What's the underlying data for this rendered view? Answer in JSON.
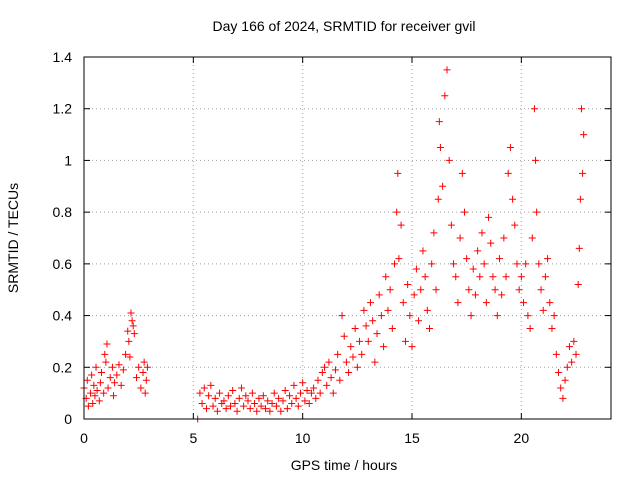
{
  "chart_data": {
    "type": "scatter",
    "title": "Day 166 of 2024, SRMTID for receiver gvil",
    "xlabel": "GPS time / hours",
    "ylabel": "SRMTID / TECUs",
    "xlim": [
      0,
      24.1
    ],
    "ylim": [
      0,
      1.4
    ],
    "xticks": [
      0,
      5,
      10,
      15,
      20
    ],
    "xtick_labels": [
      "0",
      "5",
      "10",
      "15",
      "20"
    ],
    "yticks": [
      0,
      0.2,
      0.4,
      0.6,
      0.8,
      1.0,
      1.2,
      1.4
    ],
    "ytick_labels": [
      "0",
      "0.2",
      "0.4",
      "0.6",
      "0.8",
      "1",
      "1.2",
      "1.4"
    ],
    "grid": true,
    "marker": "+",
    "color": "#ff0000",
    "series": [
      {
        "name": "SRMTID",
        "points": [
          [
            0.0,
            0.12
          ],
          [
            0.1,
            0.08
          ],
          [
            0.15,
            0.15
          ],
          [
            0.2,
            0.05
          ],
          [
            0.3,
            0.1
          ],
          [
            0.35,
            0.17
          ],
          [
            0.4,
            0.06
          ],
          [
            0.45,
            0.13
          ],
          [
            0.5,
            0.09
          ],
          [
            0.55,
            0.2
          ],
          [
            0.6,
            0.11
          ],
          [
            0.7,
            0.07
          ],
          [
            0.75,
            0.14
          ],
          [
            0.8,
            0.18
          ],
          [
            0.9,
            0.1
          ],
          [
            0.95,
            0.25
          ],
          [
            1.0,
            0.22
          ],
          [
            1.05,
            0.29
          ],
          [
            1.1,
            0.12
          ],
          [
            1.2,
            0.16
          ],
          [
            1.3,
            0.2
          ],
          [
            1.35,
            0.09
          ],
          [
            1.4,
            0.14
          ],
          [
            1.5,
            0.17
          ],
          [
            1.6,
            0.21
          ],
          [
            1.7,
            0.13
          ],
          [
            1.8,
            0.19
          ],
          [
            1.9,
            0.25
          ],
          [
            2.0,
            0.34
          ],
          [
            2.05,
            0.3
          ],
          [
            2.1,
            0.24
          ],
          [
            2.15,
            0.41
          ],
          [
            2.2,
            0.38
          ],
          [
            2.25,
            0.36
          ],
          [
            2.3,
            0.33
          ],
          [
            2.4,
            0.16
          ],
          [
            2.5,
            0.2
          ],
          [
            2.6,
            0.12
          ],
          [
            2.7,
            0.18
          ],
          [
            2.75,
            0.22
          ],
          [
            2.8,
            0.1
          ],
          [
            2.85,
            0.15
          ],
          [
            2.9,
            0.2
          ],
          [
            5.2,
            0.0
          ],
          [
            5.3,
            0.1
          ],
          [
            5.4,
            0.06
          ],
          [
            5.5,
            0.12
          ],
          [
            5.6,
            0.04
          ],
          [
            5.7,
            0.09
          ],
          [
            5.8,
            0.13
          ],
          [
            5.9,
            0.05
          ],
          [
            6.0,
            0.08
          ],
          [
            6.1,
            0.03
          ],
          [
            6.2,
            0.1
          ],
          [
            6.3,
            0.06
          ],
          [
            6.4,
            0.07
          ],
          [
            6.5,
            0.04
          ],
          [
            6.6,
            0.09
          ],
          [
            6.7,
            0.05
          ],
          [
            6.8,
            0.11
          ],
          [
            6.9,
            0.06
          ],
          [
            7.0,
            0.03
          ],
          [
            7.1,
            0.08
          ],
          [
            7.2,
            0.12
          ],
          [
            7.3,
            0.05
          ],
          [
            7.4,
            0.09
          ],
          [
            7.5,
            0.07
          ],
          [
            7.6,
            0.04
          ],
          [
            7.7,
            0.1
          ],
          [
            7.8,
            0.06
          ],
          [
            7.9,
            0.03
          ],
          [
            8.0,
            0.08
          ],
          [
            8.1,
            0.05
          ],
          [
            8.2,
            0.09
          ],
          [
            8.3,
            0.04
          ],
          [
            8.4,
            0.07
          ],
          [
            8.5,
            0.03
          ],
          [
            8.6,
            0.06
          ],
          [
            8.7,
            0.1
          ],
          [
            8.8,
            0.05
          ],
          [
            8.9,
            0.08
          ],
          [
            9.0,
            0.03
          ],
          [
            9.1,
            0.07
          ],
          [
            9.2,
            0.11
          ],
          [
            9.3,
            0.04
          ],
          [
            9.4,
            0.09
          ],
          [
            9.5,
            0.06
          ],
          [
            9.6,
            0.13
          ],
          [
            9.7,
            0.08
          ],
          [
            9.8,
            0.05
          ],
          [
            9.9,
            0.1
          ],
          [
            10.0,
            0.14
          ],
          [
            10.1,
            0.07
          ],
          [
            10.2,
            0.11
          ],
          [
            10.3,
            0.06
          ],
          [
            10.4,
            0.1
          ],
          [
            10.5,
            0.12
          ],
          [
            10.6,
            0.08
          ],
          [
            10.7,
            0.15
          ],
          [
            10.8,
            0.1
          ],
          [
            10.9,
            0.18
          ],
          [
            11.0,
            0.2
          ],
          [
            11.1,
            0.13
          ],
          [
            11.2,
            0.22
          ],
          [
            11.3,
            0.16
          ],
          [
            11.4,
            0.1
          ],
          [
            11.5,
            0.19
          ],
          [
            11.6,
            0.25
          ],
          [
            11.7,
            0.15
          ],
          [
            11.8,
            0.4
          ],
          [
            11.9,
            0.32
          ],
          [
            12.0,
            0.22
          ],
          [
            12.1,
            0.18
          ],
          [
            12.2,
            0.28
          ],
          [
            12.3,
            0.24
          ],
          [
            12.4,
            0.35
          ],
          [
            12.5,
            0.2
          ],
          [
            12.6,
            0.3
          ],
          [
            12.7,
            0.25
          ],
          [
            12.8,
            0.42
          ],
          [
            12.9,
            0.36
          ],
          [
            13.0,
            0.3
          ],
          [
            13.1,
            0.45
          ],
          [
            13.2,
            0.38
          ],
          [
            13.3,
            0.22
          ],
          [
            13.4,
            0.33
          ],
          [
            13.5,
            0.48
          ],
          [
            13.6,
            0.4
          ],
          [
            13.7,
            0.28
          ],
          [
            13.8,
            0.55
          ],
          [
            13.9,
            0.42
          ],
          [
            14.0,
            0.5
          ],
          [
            14.1,
            0.35
          ],
          [
            14.2,
            0.6
          ],
          [
            14.3,
            0.8
          ],
          [
            14.35,
            0.95
          ],
          [
            14.4,
            0.62
          ],
          [
            14.5,
            0.75
          ],
          [
            14.6,
            0.45
          ],
          [
            14.7,
            0.3
          ],
          [
            14.8,
            0.52
          ],
          [
            14.9,
            0.4
          ],
          [
            15.0,
            0.28
          ],
          [
            15.1,
            0.48
          ],
          [
            15.2,
            0.58
          ],
          [
            15.3,
            0.38
          ],
          [
            15.4,
            0.5
          ],
          [
            15.5,
            0.65
          ],
          [
            15.6,
            0.55
          ],
          [
            15.7,
            0.42
          ],
          [
            15.8,
            0.35
          ],
          [
            15.9,
            0.6
          ],
          [
            16.0,
            0.72
          ],
          [
            16.1,
            0.5
          ],
          [
            16.2,
            0.85
          ],
          [
            16.25,
            1.15
          ],
          [
            16.3,
            1.05
          ],
          [
            16.4,
            0.9
          ],
          [
            16.5,
            1.25
          ],
          [
            16.6,
            1.35
          ],
          [
            16.7,
            1.0
          ],
          [
            16.8,
            0.75
          ],
          [
            16.9,
            0.6
          ],
          [
            17.0,
            0.55
          ],
          [
            17.1,
            0.45
          ],
          [
            17.2,
            0.7
          ],
          [
            17.3,
            0.95
          ],
          [
            17.4,
            0.8
          ],
          [
            17.5,
            0.62
          ],
          [
            17.6,
            0.5
          ],
          [
            17.7,
            0.4
          ],
          [
            17.8,
            0.58
          ],
          [
            17.9,
            0.48
          ],
          [
            18.0,
            0.65
          ],
          [
            18.1,
            0.55
          ],
          [
            18.2,
            0.72
          ],
          [
            18.3,
            0.6
          ],
          [
            18.4,
            0.45
          ],
          [
            18.5,
            0.78
          ],
          [
            18.6,
            0.68
          ],
          [
            18.7,
            0.55
          ],
          [
            18.8,
            0.5
          ],
          [
            18.9,
            0.4
          ],
          [
            19.0,
            0.62
          ],
          [
            19.1,
            0.48
          ],
          [
            19.2,
            0.7
          ],
          [
            19.3,
            0.55
          ],
          [
            19.4,
            0.95
          ],
          [
            19.5,
            1.05
          ],
          [
            19.6,
            0.85
          ],
          [
            19.7,
            0.75
          ],
          [
            19.8,
            0.6
          ],
          [
            19.9,
            0.5
          ],
          [
            20.0,
            0.55
          ],
          [
            20.1,
            0.45
          ],
          [
            20.2,
            0.6
          ],
          [
            20.3,
            0.4
          ],
          [
            20.4,
            0.35
          ],
          [
            20.5,
            0.7
          ],
          [
            20.6,
            1.2
          ],
          [
            20.65,
            1.0
          ],
          [
            20.7,
            0.8
          ],
          [
            20.8,
            0.6
          ],
          [
            20.9,
            0.5
          ],
          [
            21.0,
            0.42
          ],
          [
            21.1,
            0.55
          ],
          [
            21.2,
            0.62
          ],
          [
            21.3,
            0.45
          ],
          [
            21.4,
            0.35
          ],
          [
            21.5,
            0.4
          ],
          [
            21.6,
            0.25
          ],
          [
            21.7,
            0.18
          ],
          [
            21.8,
            0.12
          ],
          [
            21.9,
            0.08
          ],
          [
            22.0,
            0.15
          ],
          [
            22.1,
            0.2
          ],
          [
            22.2,
            0.28
          ],
          [
            22.3,
            0.22
          ],
          [
            22.4,
            0.3
          ],
          [
            22.5,
            0.25
          ],
          [
            22.6,
            0.52
          ],
          [
            22.65,
            0.66
          ],
          [
            22.7,
            0.85
          ],
          [
            22.75,
            1.2
          ],
          [
            22.8,
            0.95
          ],
          [
            22.85,
            1.1
          ]
        ]
      }
    ]
  }
}
